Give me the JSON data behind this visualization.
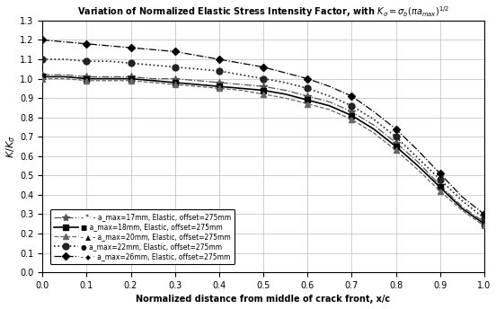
{
  "title": "Variation of Normalized Elastic Stress Intensity Factor, with $K_{\\sigma}=\\sigma_b(\\pi a_{max})^{1/2}$",
  "xlabel": "Normalized distance from middle of crack front, x/c",
  "ylabel": "$K/K_\\sigma$",
  "xlim": [
    0.0,
    1.0
  ],
  "ylim": [
    0.0,
    1.3
  ],
  "xticks": [
    0.0,
    0.1,
    0.2,
    0.3,
    0.4,
    0.5,
    0.6,
    0.7,
    0.8,
    0.9,
    1.0
  ],
  "yticks": [
    0.0,
    0.1,
    0.2,
    0.3,
    0.4,
    0.5,
    0.6,
    0.7,
    0.8,
    0.9,
    1.0,
    1.1,
    1.2,
    1.3
  ],
  "series": [
    {
      "label": "- *- a_max=17mm, Elastic, offset=275mm",
      "x": [
        0.0,
        0.05,
        0.1,
        0.15,
        0.2,
        0.25,
        0.3,
        0.35,
        0.4,
        0.45,
        0.5,
        0.55,
        0.6,
        0.65,
        0.7,
        0.75,
        0.8,
        0.85,
        0.9,
        0.95,
        1.0
      ],
      "y": [
        1.02,
        1.02,
        1.01,
        1.01,
        1.01,
        1.0,
        1.0,
        0.99,
        0.98,
        0.97,
        0.96,
        0.94,
        0.91,
        0.88,
        0.83,
        0.76,
        0.67,
        0.57,
        0.45,
        0.34,
        0.26
      ],
      "linestyle": "-.",
      "marker": "*",
      "color": "#555555",
      "linewidth": 0.9,
      "markersize": 6,
      "markevery": 2
    },
    {
      "label": "a_max=18mm, Elastic, offset=275mm",
      "x": [
        0.0,
        0.05,
        0.1,
        0.15,
        0.2,
        0.25,
        0.3,
        0.35,
        0.4,
        0.45,
        0.5,
        0.55,
        0.6,
        0.65,
        0.7,
        0.75,
        0.8,
        0.85,
        0.9,
        0.95,
        1.0
      ],
      "y": [
        1.01,
        1.01,
        1.0,
        1.0,
        1.0,
        0.99,
        0.98,
        0.97,
        0.96,
        0.95,
        0.94,
        0.92,
        0.89,
        0.86,
        0.81,
        0.74,
        0.65,
        0.55,
        0.44,
        0.33,
        0.25
      ],
      "linestyle": "-",
      "marker": "s",
      "color": "#000000",
      "linewidth": 1.2,
      "markersize": 5,
      "markevery": 2
    },
    {
      "label": "- a_max=20mm, Elastic, offset=275mm",
      "x": [
        0.0,
        0.05,
        0.1,
        0.15,
        0.2,
        0.25,
        0.3,
        0.35,
        0.4,
        0.45,
        0.5,
        0.55,
        0.6,
        0.65,
        0.7,
        0.75,
        0.8,
        0.85,
        0.9,
        0.95,
        1.0
      ],
      "y": [
        1.0,
        1.0,
        0.99,
        0.99,
        0.99,
        0.98,
        0.97,
        0.96,
        0.95,
        0.94,
        0.92,
        0.9,
        0.87,
        0.84,
        0.79,
        0.72,
        0.63,
        0.53,
        0.42,
        0.32,
        0.24
      ],
      "linestyle": "--",
      "marker": "^",
      "color": "#666666",
      "linewidth": 0.9,
      "markersize": 5,
      "markevery": 2
    },
    {
      "label": "a_max=22mm, Elastic, offset=275mm",
      "x": [
        0.0,
        0.05,
        0.1,
        0.15,
        0.2,
        0.25,
        0.3,
        0.35,
        0.4,
        0.45,
        0.5,
        0.55,
        0.6,
        0.65,
        0.7,
        0.75,
        0.8,
        0.85,
        0.9,
        0.95,
        1.0
      ],
      "y": [
        1.1,
        1.1,
        1.09,
        1.09,
        1.08,
        1.07,
        1.06,
        1.05,
        1.04,
        1.02,
        1.0,
        0.98,
        0.95,
        0.91,
        0.86,
        0.79,
        0.7,
        0.59,
        0.48,
        0.37,
        0.28
      ],
      "linestyle": ":",
      "marker": "o",
      "color": "#222222",
      "linewidth": 1.2,
      "markersize": 5,
      "markevery": 2
    },
    {
      "label": "- a_max=26mm, Elastic, offset=275mm",
      "x": [
        0.0,
        0.05,
        0.1,
        0.15,
        0.2,
        0.25,
        0.3,
        0.35,
        0.4,
        0.45,
        0.5,
        0.55,
        0.6,
        0.65,
        0.7,
        0.75,
        0.8,
        0.85,
        0.9,
        0.95,
        1.0
      ],
      "y": [
        1.2,
        1.19,
        1.18,
        1.17,
        1.16,
        1.15,
        1.14,
        1.12,
        1.1,
        1.08,
        1.06,
        1.03,
        1.0,
        0.96,
        0.91,
        0.83,
        0.74,
        0.63,
        0.51,
        0.39,
        0.3
      ],
      "linestyle": "-.",
      "marker": "D",
      "color": "#000000",
      "linewidth": 0.9,
      "markersize": 4,
      "markevery": 2
    }
  ],
  "legend_plain_labels": [
    "- *· - a_max=17mm, Elastic, offset=275mm",
    "■ a_max=18mm, Elastic, offset=275mm",
    "- ▲ - a_max=20mm, Elastic, offset=275mm",
    "● a_max=22mm, Elastic, offset=275mm",
    "- ◆ · a_max=26mm, Elastic, offset=275mm"
  ],
  "background_color": "#ffffff",
  "grid_color": "#bbbbbb"
}
